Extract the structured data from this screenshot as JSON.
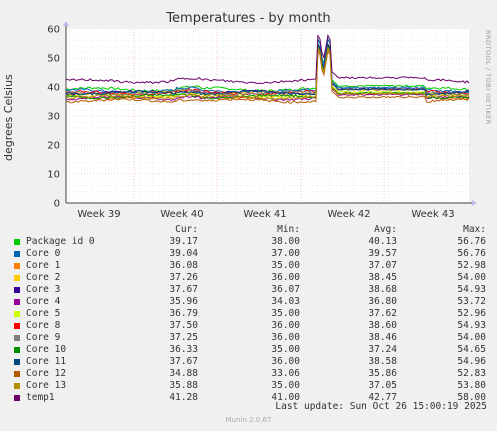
{
  "title": "Temperatures - by month",
  "side_label": "RRDTOOL / TOBI OETIKER",
  "footer": {
    "last_update": "Last update: Sun Oct 26 15:00:19 2025",
    "munin": "Munin 2.0.67"
  },
  "legend_header": {
    "cur": "Cur:",
    "min": "Min:",
    "avg": "Avg:",
    "max": "Max:"
  },
  "chart_data": {
    "type": "line",
    "ylabel": "degrees Celsius",
    "ylim": [
      0,
      60
    ],
    "y_ticks": [
      "0",
      "10",
      "20",
      "30",
      "40",
      "50",
      "60"
    ],
    "x_ticks": [
      "Week 39",
      "Week 40",
      "Week 41",
      "Week 42",
      "Week 43"
    ],
    "grid": true,
    "series": [
      {
        "name": "Package id 0",
        "color": "#00cc00",
        "cur": "39.17",
        "min": "38.00",
        "avg": "40.13",
        "max": "56.76",
        "base": 39.2,
        "spike": 56.8
      },
      {
        "name": "Core 0",
        "color": "#0066b3",
        "cur": "39.04",
        "min": "37.00",
        "avg": "39.57",
        "max": "56.76",
        "base": 38.6,
        "spike": 56.8
      },
      {
        "name": "Core 1",
        "color": "#ff8000",
        "cur": "36.08",
        "min": "35.00",
        "avg": "37.07",
        "max": "52.98",
        "base": 36.5,
        "spike": 53.0
      },
      {
        "name": "Core 2",
        "color": "#ffcc00",
        "cur": "37.26",
        "min": "36.00",
        "avg": "38.45",
        "max": "54.00",
        "base": 37.9,
        "spike": 54.0
      },
      {
        "name": "Core 3",
        "color": "#330099",
        "cur": "37.67",
        "min": "36.07",
        "avg": "38.68",
        "max": "54.93",
        "base": 38.1,
        "spike": 54.9
      },
      {
        "name": "Core 4",
        "color": "#990099",
        "cur": "35.96",
        "min": "34.03",
        "avg": "36.80",
        "max": "53.72",
        "base": 36.2,
        "spike": 53.7
      },
      {
        "name": "Core 5",
        "color": "#ccff00",
        "cur": "36.79",
        "min": "35.00",
        "avg": "37.62",
        "max": "52.96",
        "base": 37.1,
        "spike": 53.0
      },
      {
        "name": "Core 8",
        "color": "#ff0000",
        "cur": "37.50",
        "min": "36.00",
        "avg": "38.60",
        "max": "54.93",
        "base": 38.0,
        "spike": 54.9
      },
      {
        "name": "Core 9",
        "color": "#808080",
        "cur": "37.25",
        "min": "36.00",
        "avg": "38.46",
        "max": "54.00",
        "base": 37.9,
        "spike": 54.0
      },
      {
        "name": "Core 10",
        "color": "#008f00",
        "cur": "36.33",
        "min": "35.00",
        "avg": "37.24",
        "max": "54.65",
        "base": 36.7,
        "spike": 54.6
      },
      {
        "name": "Core 11",
        "color": "#00487d",
        "cur": "37.67",
        "min": "36.00",
        "avg": "38.58",
        "max": "54.96",
        "base": 38.0,
        "spike": 55.0
      },
      {
        "name": "Core 12",
        "color": "#b35a00",
        "cur": "34.88",
        "min": "33.06",
        "avg": "35.86",
        "max": "52.83",
        "base": 35.3,
        "spike": 52.8
      },
      {
        "name": "Core 13",
        "color": "#b38f00",
        "cur": "35.88",
        "min": "35.00",
        "avg": "37.05",
        "max": "53.80",
        "base": 36.5,
        "spike": 53.8
      },
      {
        "name": "temp1",
        "color": "#6b006b",
        "cur": "41.28",
        "min": "41.00",
        "avg": "42.77",
        "max": "58.00",
        "base": 42.0,
        "spike": 58.0
      }
    ]
  }
}
